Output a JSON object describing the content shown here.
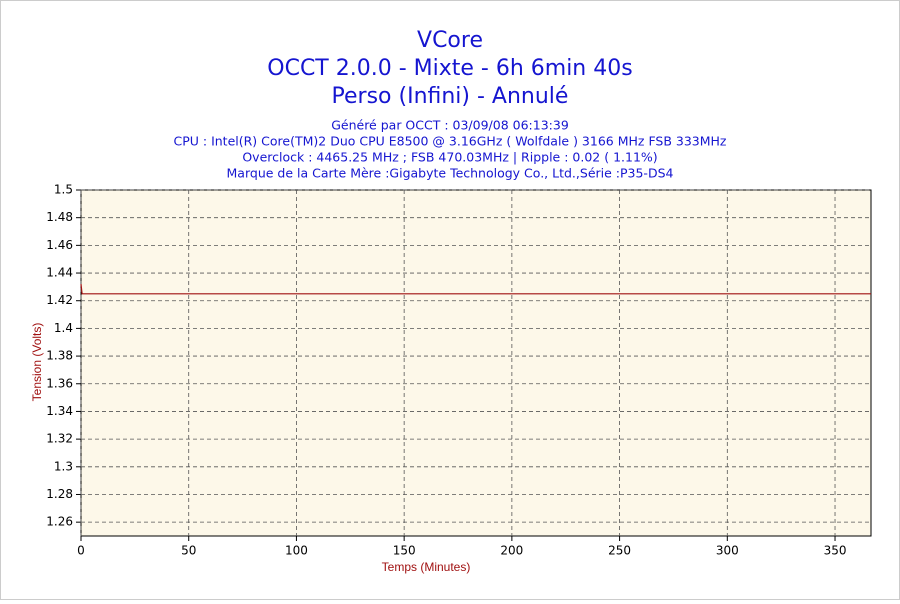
{
  "chart_data": {
    "type": "line",
    "titles": [
      "VCore",
      "OCCT 2.0.0 - Mixte - 6h 6min 40s",
      "Perso (Infini) - Annulé"
    ],
    "subtitles": [
      "Généré par OCCT : 03/09/08 06:13:39",
      "CPU : Intel(R) Core(TM)2 Duo CPU E8500 @ 3.16GHz ( Wolfdale ) 3166 MHz FSB 333MHz",
      "Overclock : 4465.25 MHz ; FSB 470.03MHz | Ripple : 0.02 ( 1.11%)",
      "Marque de la Carte Mère :Gigabyte Technology Co., Ltd.,Série :P35-DS4"
    ],
    "x_label": "Temps (Minutes)",
    "y_label": "Tension (Volts)",
    "x": [
      0,
      0.5,
      366.7
    ],
    "series": [
      {
        "color": "#a01010",
        "values": [
          1.432,
          1.425,
          1.425
        ]
      }
    ],
    "xlim": [
      0,
      366.7
    ],
    "xticks": [
      0,
      50,
      100,
      150,
      200,
      250,
      300,
      350
    ],
    "ylim": [
      1.25,
      1.5
    ],
    "yticks": [
      1.26,
      1.28,
      1.3,
      1.32,
      1.34,
      1.36,
      1.38,
      1.4,
      1.42,
      1.44,
      1.46,
      1.48,
      1.5
    ],
    "grid": true
  }
}
